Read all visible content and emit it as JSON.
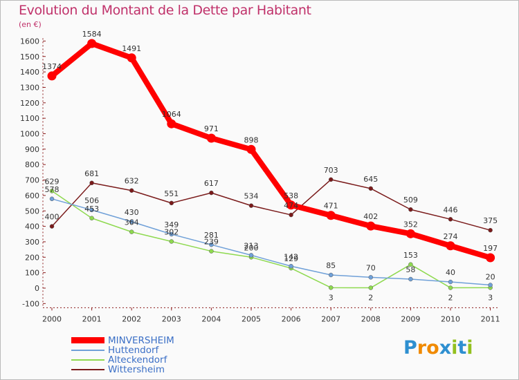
{
  "title": "Evolution du Montant de la Dette par Habitant",
  "unit": "(en €)",
  "logo": {
    "text": "Proxiti",
    "letters": [
      "P",
      "r",
      "o",
      "x",
      "i",
      "t",
      "i"
    ],
    "colors": [
      "#2e8fd0",
      "#f08a00",
      "#f08a00",
      "#2e8fd0",
      "#93c01f",
      "#2e8fd0",
      "#93c01f"
    ]
  },
  "chart_data": {
    "type": "line",
    "title": "Evolution du Montant de la Dette par Habitant",
    "ylabel": "(en €)",
    "xlabel": "",
    "ylim": [
      -100,
      1600
    ],
    "yticks": [
      -100,
      0,
      100,
      200,
      300,
      400,
      500,
      600,
      700,
      800,
      900,
      1000,
      1100,
      1200,
      1300,
      1400,
      1500,
      1600
    ],
    "categories": [
      "2000",
      "2001",
      "2002",
      "2003",
      "2004",
      "2005",
      "2006",
      "2007",
      "2008",
      "2009",
      "2010",
      "2011"
    ],
    "grid": false,
    "legend": "bottom-left",
    "series": [
      {
        "name": "MINVERSHEIM",
        "color": "#ff0000",
        "values": [
          1374,
          1584,
          1491,
          1064,
          971,
          898,
          538,
          471,
          402,
          352,
          274,
          197
        ]
      },
      {
        "name": "Huttendorf",
        "color": "#6fa0d8",
        "values": [
          578,
          506,
          430,
          349,
          281,
          213,
          142,
          85,
          70,
          58,
          40,
          20
        ]
      },
      {
        "name": "Alteckendorf",
        "color": "#8ed94f",
        "values": [
          629,
          453,
          364,
          302,
          239,
          200,
          129,
          3,
          2,
          153,
          2,
          3
        ]
      },
      {
        "name": "Wittersheim",
        "color": "#7a1a1a",
        "values": [
          400,
          681,
          632,
          551,
          617,
          534,
          474,
          703,
          645,
          509,
          446,
          375
        ]
      }
    ]
  }
}
